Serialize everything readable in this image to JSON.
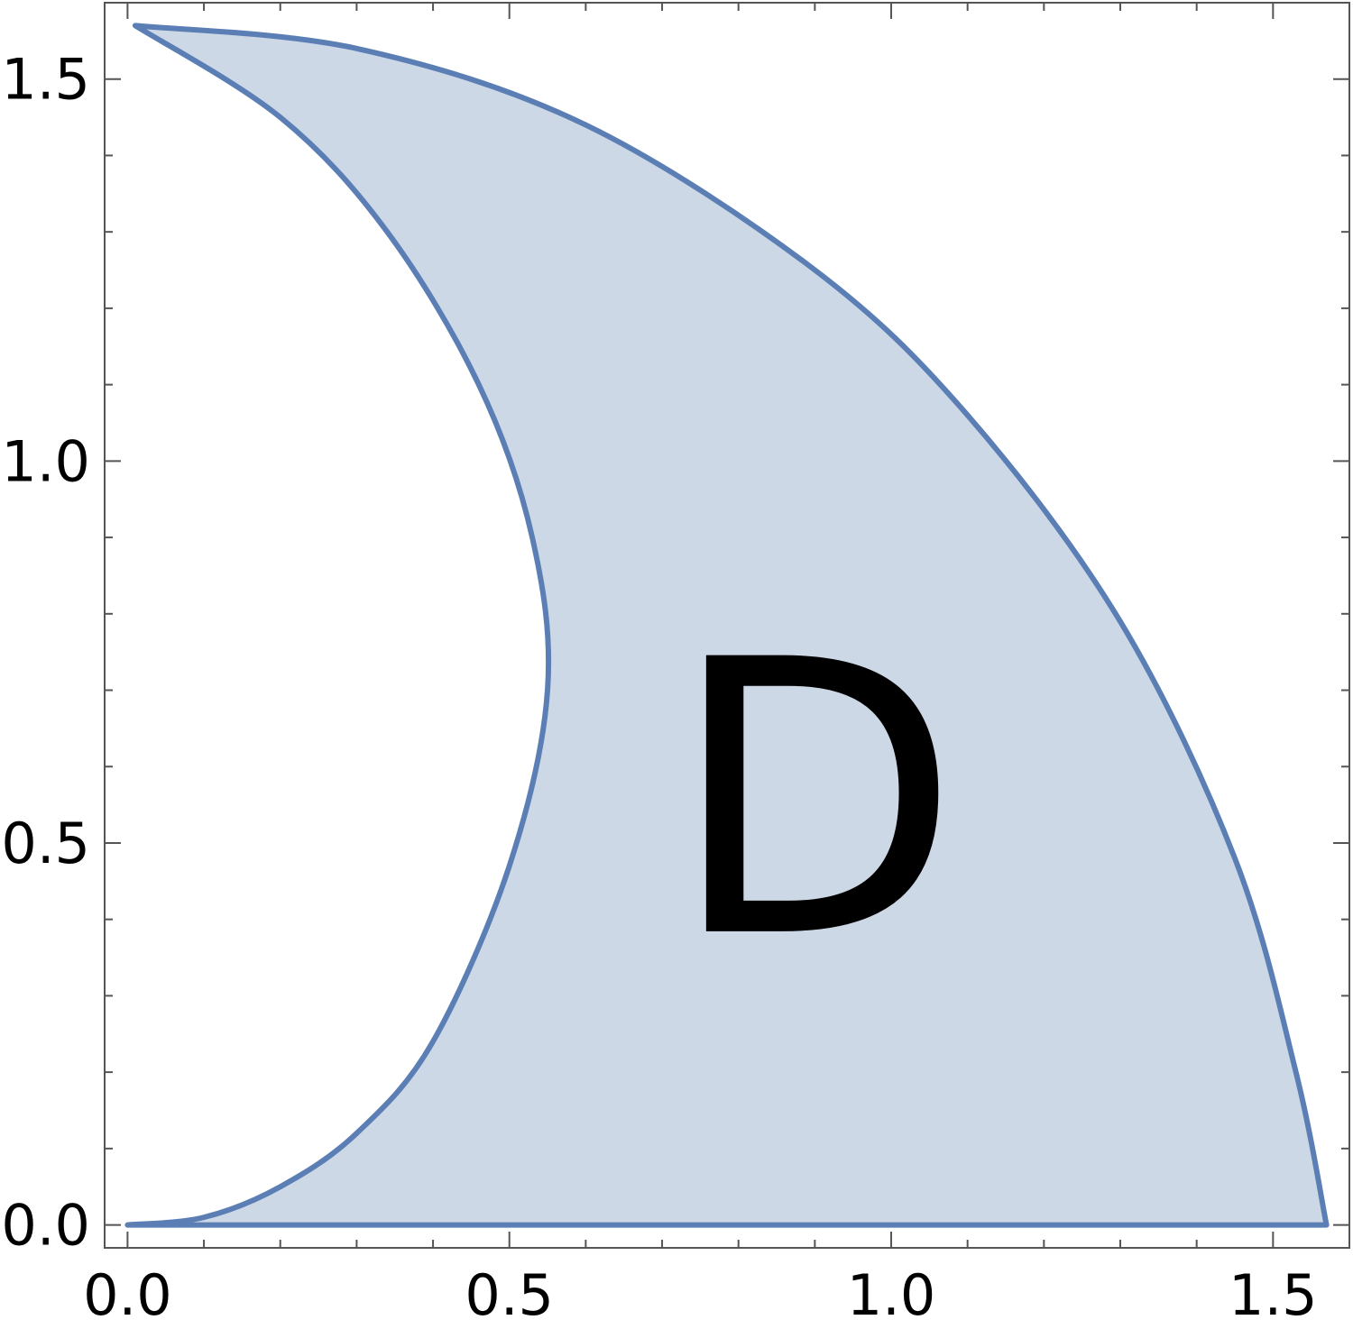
{
  "chart_data": {
    "type": "area",
    "title": "",
    "xlabel": "",
    "ylabel": "",
    "xlim": [
      -0.03,
      1.6
    ],
    "ylim": [
      -0.03,
      1.6
    ],
    "x_ticks": [
      0.0,
      0.5,
      1.0,
      1.5
    ],
    "y_ticks": [
      0.0,
      0.5,
      1.0,
      1.5
    ],
    "x_tick_labels": [
      "0.0",
      "0.5",
      "1.0",
      "1.5"
    ],
    "y_tick_labels": [
      "0.0",
      "0.5",
      "1.0",
      "1.5"
    ],
    "minor_tick_step": 0.1,
    "grid": false,
    "region": {
      "label": "D",
      "label_position": [
        0.9,
        0.52
      ],
      "fill_color": "#cdd8e7",
      "edge_color": "#5b7fb5",
      "outer_boundary": [
        [
          0.01,
          1.57
        ],
        [
          0.3,
          1.54
        ],
        [
          0.6,
          1.44
        ],
        [
          0.9,
          1.25
        ],
        [
          1.1,
          1.06
        ],
        [
          1.3,
          0.79
        ],
        [
          1.45,
          0.48
        ],
        [
          1.53,
          0.2
        ],
        [
          1.57,
          0.0
        ]
      ],
      "inner_boundary": [
        [
          0.0,
          0.0
        ],
        [
          0.1,
          0.01
        ],
        [
          0.2,
          0.05
        ],
        [
          0.3,
          0.12
        ],
        [
          0.4,
          0.24
        ],
        [
          0.5,
          0.47
        ],
        [
          0.55,
          0.7
        ],
        [
          0.53,
          0.9
        ],
        [
          0.46,
          1.1
        ],
        [
          0.34,
          1.3
        ],
        [
          0.2,
          1.45
        ],
        [
          0.01,
          1.57
        ]
      ],
      "bottom_boundary": [
        [
          0.0,
          0.0
        ],
        [
          1.57,
          0.0
        ]
      ]
    }
  }
}
